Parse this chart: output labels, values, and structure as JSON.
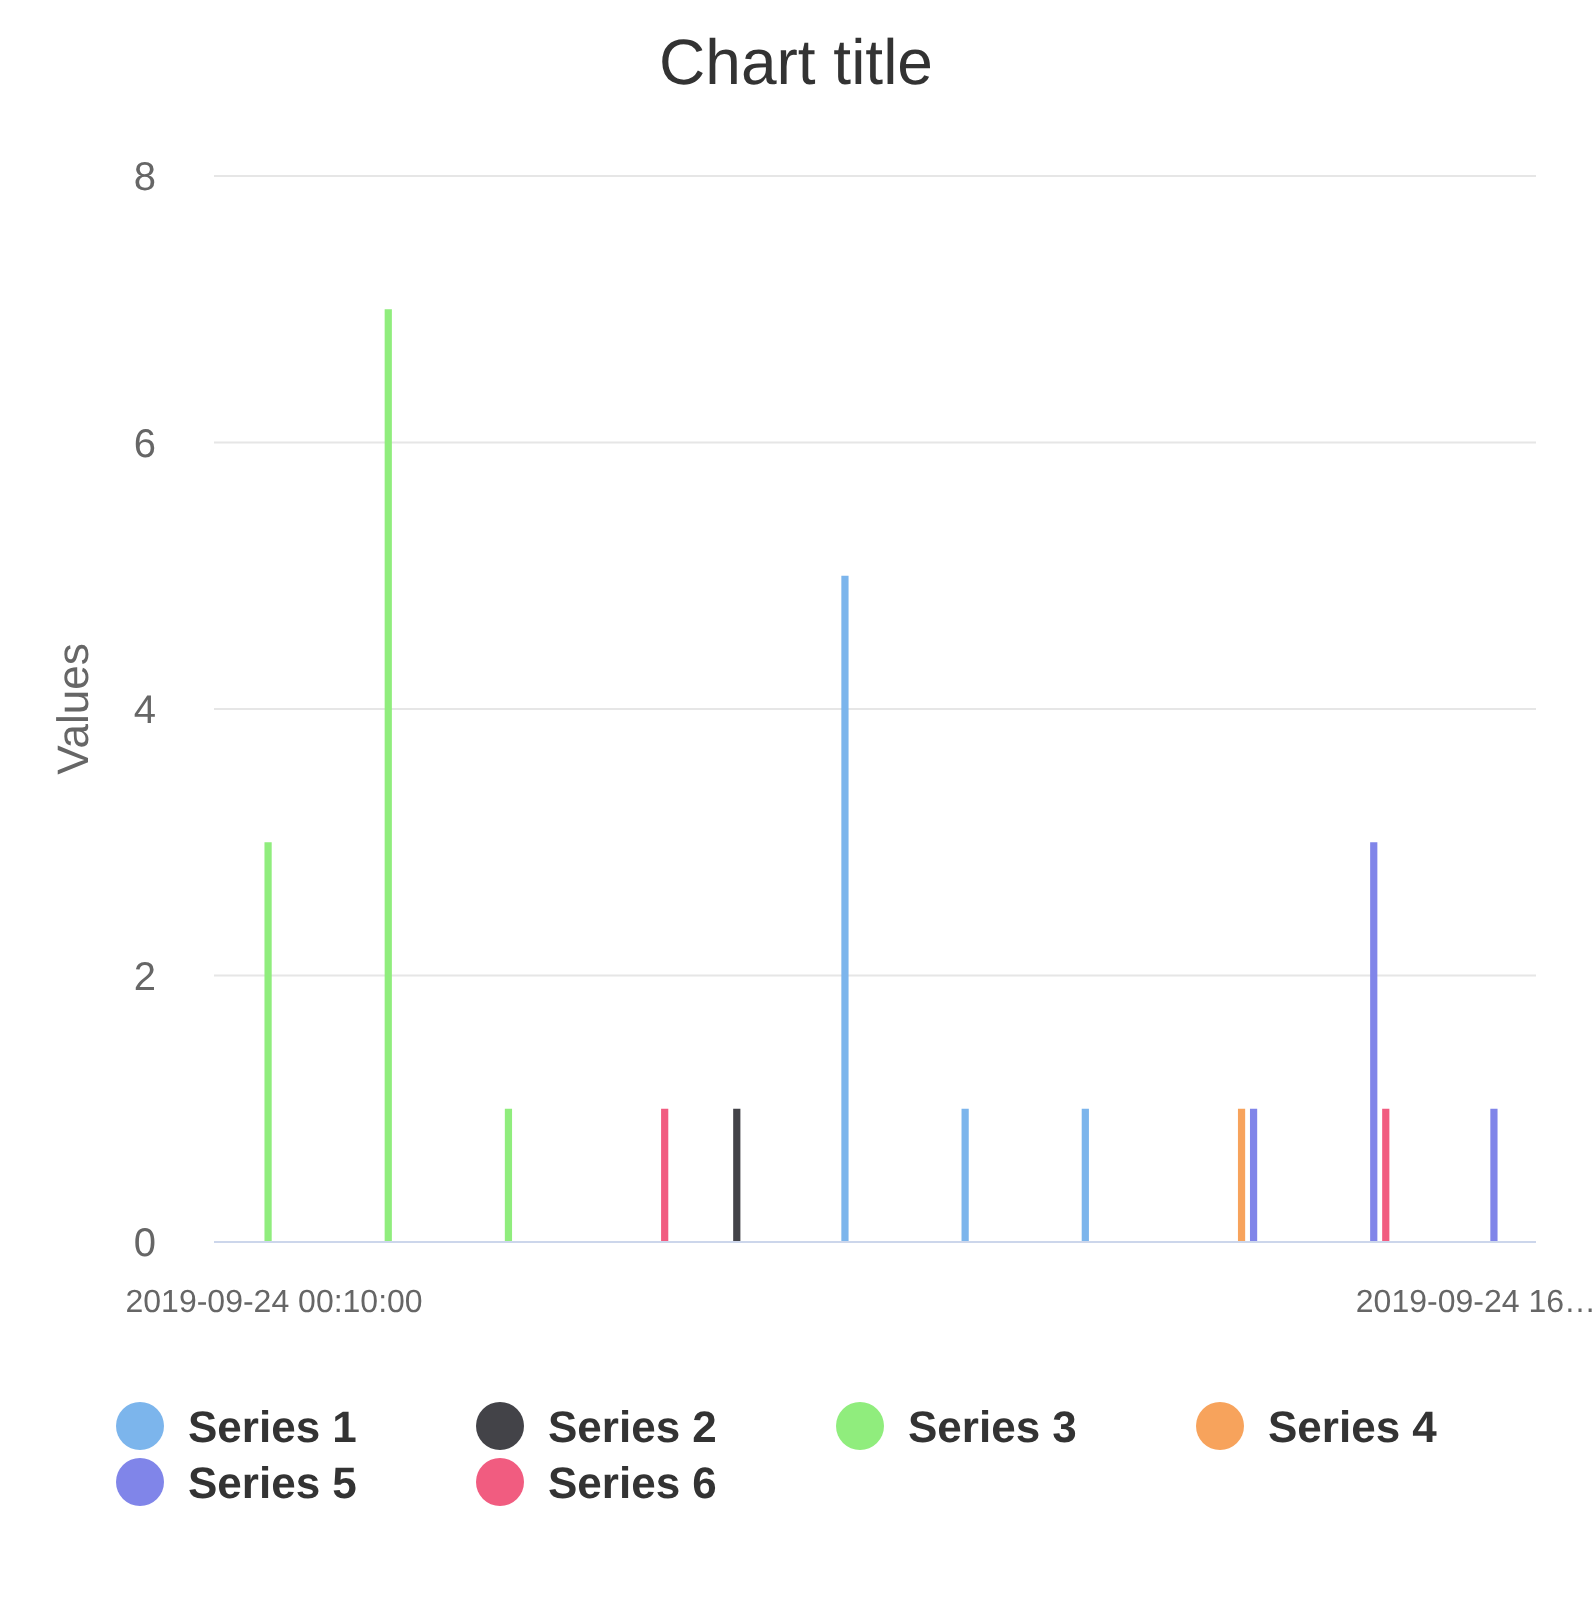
{
  "chart_data": {
    "type": "bar",
    "title": "Chart title",
    "ylabel": "Values",
    "categories": [
      "2019-09-24 00:10:00",
      null,
      null,
      null,
      null,
      null,
      null,
      null,
      null,
      null,
      "2019-09-24 16…"
    ],
    "series": [
      {
        "name": "Series 1",
        "color": "#7cb5ec",
        "values": [
          null,
          null,
          null,
          null,
          null,
          5,
          1,
          1,
          null,
          null,
          null
        ]
      },
      {
        "name": "Series 2",
        "color": "#434348",
        "values": [
          null,
          null,
          null,
          null,
          1,
          null,
          null,
          null,
          null,
          null,
          null
        ]
      },
      {
        "name": "Series 3",
        "color": "#90ed7d",
        "values": [
          3,
          7,
          1,
          null,
          null,
          null,
          null,
          null,
          null,
          null,
          null
        ]
      },
      {
        "name": "Series 4",
        "color": "#f7a35c",
        "values": [
          null,
          null,
          null,
          null,
          null,
          null,
          null,
          null,
          1,
          null,
          null
        ]
      },
      {
        "name": "Series 5",
        "color": "#8085e9",
        "values": [
          null,
          null,
          null,
          null,
          null,
          null,
          null,
          null,
          1,
          3,
          1
        ]
      },
      {
        "name": "Series 6",
        "color": "#f15c80",
        "values": [
          null,
          null,
          null,
          1,
          null,
          null,
          null,
          null,
          null,
          1,
          null
        ]
      }
    ],
    "ylim": [
      0,
      8
    ],
    "yticks": [
      0,
      2,
      4,
      6,
      8
    ],
    "grid": "y",
    "legend": "bottom"
  }
}
